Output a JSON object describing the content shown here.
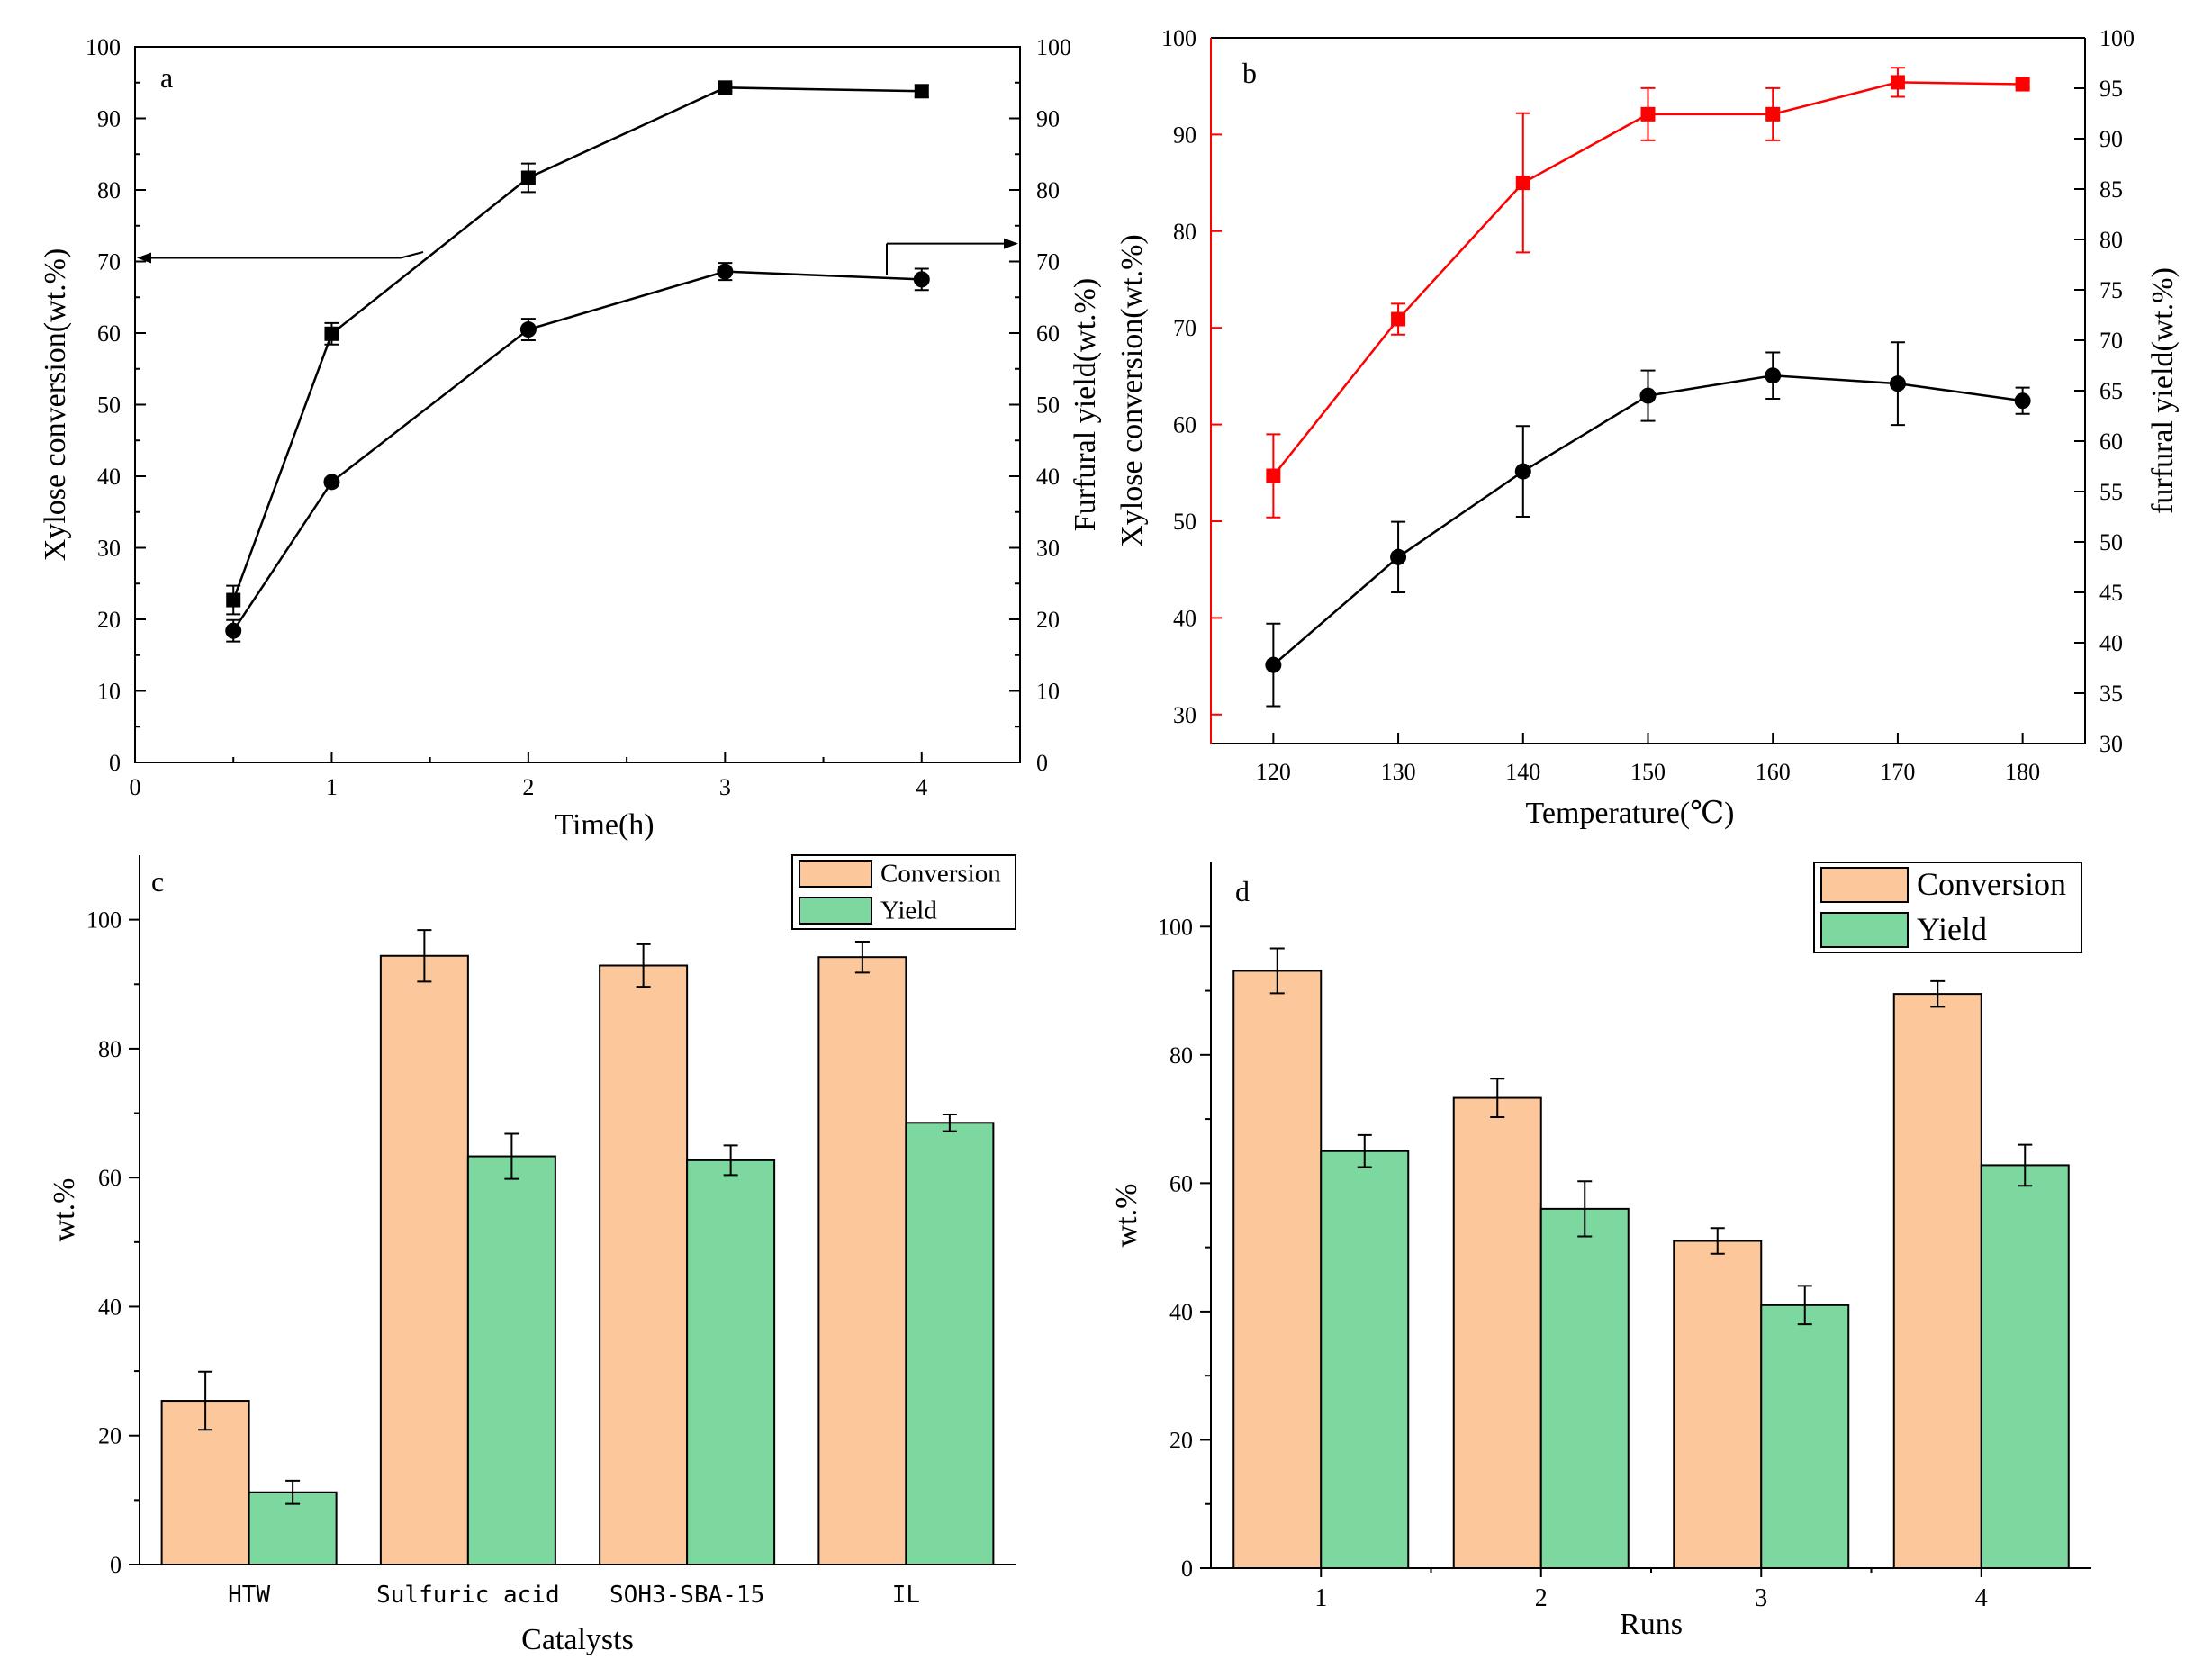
{
  "chart_data": [
    {
      "panel": "a",
      "type": "line",
      "xlabel": "Time(h)",
      "ylabel_left": "Xylose conversion(wt.%)",
      "ylabel_right": "Furfural yield(wt.%)",
      "xlim": [
        0,
        4.5
      ],
      "xticks": [
        0,
        1,
        2,
        3,
        4
      ],
      "ylim_left": [
        0,
        100
      ],
      "ylim_right": [
        0,
        100
      ],
      "yticks_left": [
        0,
        10,
        20,
        30,
        40,
        50,
        60,
        70,
        80,
        90,
        100
      ],
      "yticks_right": [
        0,
        10,
        20,
        30,
        40,
        50,
        60,
        70,
        80,
        90,
        100
      ],
      "series": [
        {
          "name": "Xylose conversion",
          "axis": "left",
          "marker": "square",
          "color": "#000000",
          "x": [
            0.5,
            1,
            2,
            3,
            4
          ],
          "y": [
            22.7,
            59.9,
            81.7,
            94.3,
            93.8
          ],
          "err": [
            2.0,
            1.5,
            2.0,
            0.5,
            0.8
          ]
        },
        {
          "name": "Furfural yield",
          "axis": "right",
          "marker": "circle",
          "color": "#000000",
          "x": [
            0.5,
            1,
            2,
            3,
            4
          ],
          "y": [
            18.4,
            39.2,
            60.5,
            68.6,
            67.5
          ],
          "err": [
            1.5,
            0.5,
            1.5,
            1.2,
            1.5
          ]
        }
      ]
    },
    {
      "panel": "b",
      "type": "line",
      "xlabel": "Temperature(℃)",
      "ylabel_left": "Xylose conversion(wt.%)",
      "ylabel_right": "furfural yield(wt.%)",
      "xlim": [
        115,
        185
      ],
      "xticks": [
        120,
        130,
        140,
        150,
        160,
        170,
        180
      ],
      "ylim_left": [
        27,
        100
      ],
      "ylim_right": [
        30,
        100
      ],
      "yticks_left": [
        30,
        40,
        50,
        60,
        70,
        80,
        90,
        100
      ],
      "yticks_right": [
        30,
        35,
        40,
        45,
        50,
        55,
        60,
        65,
        70,
        75,
        80,
        85,
        90,
        95,
        100
      ],
      "series": [
        {
          "name": "Xylose conversion",
          "axis": "left",
          "marker": "square",
          "color": "#ff0000",
          "x": [
            120,
            130,
            140,
            150,
            160,
            170,
            180
          ],
          "y": [
            54.7,
            70.9,
            85.0,
            92.1,
            92.1,
            95.4,
            95.2
          ],
          "err": [
            4.3,
            1.6,
            7.2,
            2.7,
            2.7,
            1.5,
            0.3
          ]
        },
        {
          "name": "furfural yield",
          "axis": "right",
          "marker": "circle",
          "color": "#000000",
          "x": [
            120,
            130,
            140,
            150,
            160,
            170,
            180
          ],
          "y": [
            37.8,
            48.5,
            57.0,
            64.5,
            66.5,
            65.7,
            64.0
          ],
          "err": [
            4.1,
            3.5,
            4.5,
            2.5,
            2.3,
            4.1,
            1.3
          ]
        }
      ]
    },
    {
      "panel": "c",
      "type": "bar",
      "xlabel": "Catalysts",
      "ylabel": "wt.%",
      "ylim": [
        0,
        110
      ],
      "yticks": [
        0,
        20,
        40,
        60,
        80,
        100
      ],
      "categories": [
        "HTW",
        "Sulfuric acid",
        "SOH3-SBA-15",
        "IL"
      ],
      "legend_position": "top-right",
      "series": [
        {
          "name": "Conversion",
          "color": "#fcc89b",
          "values": [
            25.4,
            94.4,
            92.9,
            94.2
          ],
          "err": [
            4.5,
            4.0,
            3.3,
            2.4
          ]
        },
        {
          "name": "Yield",
          "color": "#7dd89f",
          "values": [
            11.2,
            63.3,
            62.7,
            68.5
          ],
          "err": [
            1.8,
            3.5,
            2.3,
            1.3
          ]
        }
      ]
    },
    {
      "panel": "d",
      "type": "bar",
      "xlabel": "Runs",
      "ylabel": "wt.%",
      "ylim": [
        0,
        110
      ],
      "yticks": [
        0,
        20,
        40,
        60,
        80,
        100
      ],
      "categories": [
        "1",
        "2",
        "3",
        "4"
      ],
      "legend_position": "top-right",
      "series": [
        {
          "name": "Conversion",
          "color": "#fcc89b",
          "values": [
            93.1,
            73.3,
            51.0,
            89.5
          ],
          "err": [
            3.5,
            3.0,
            2.0,
            2.0
          ]
        },
        {
          "name": "Yield",
          "color": "#7dd89f",
          "values": [
            65.0,
            56.0,
            41.0,
            62.8
          ],
          "err": [
            2.5,
            4.3,
            3.0,
            3.2
          ]
        }
      ]
    }
  ]
}
